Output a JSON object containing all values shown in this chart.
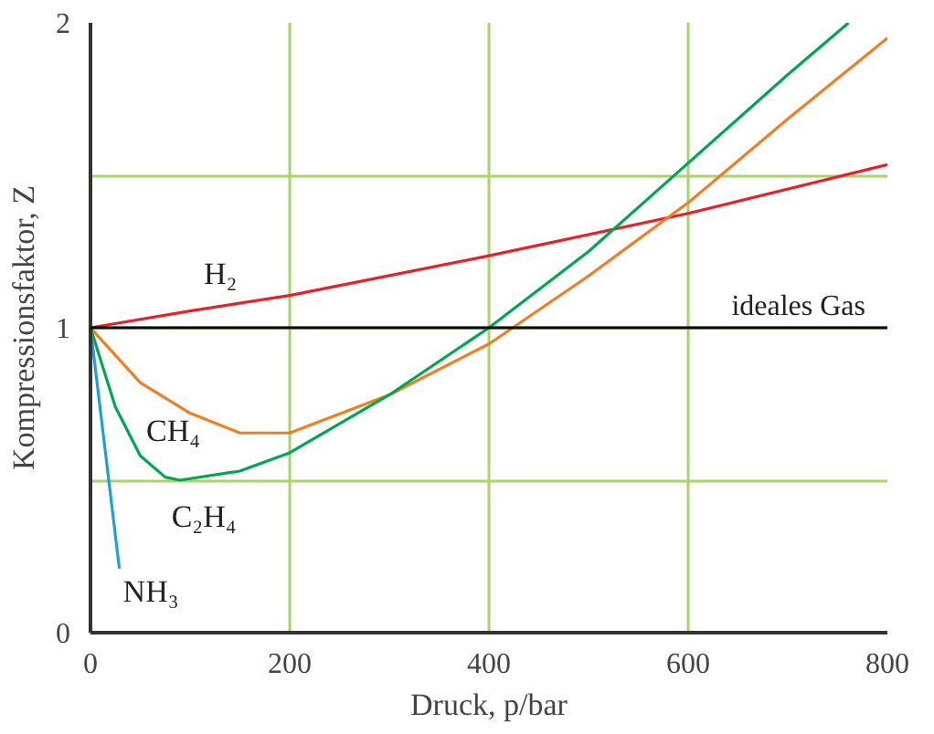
{
  "chart_data": {
    "type": "line",
    "xlabel": "Druck, p/bar",
    "ylabel": "Kompressionsfaktor, Z",
    "xlim": [
      0,
      800
    ],
    "ylim": [
      0,
      2
    ],
    "xticks": [
      0,
      200,
      400,
      600,
      800
    ],
    "yticks": [
      0,
      {
        "value": 0.5,
        "label": null
      },
      1,
      {
        "value": 1.5,
        "label": null
      },
      2
    ],
    "grid": true,
    "marker": "none",
    "line_style": "solid",
    "ref_lines": [
      {
        "axis": "y",
        "value": 1,
        "label": "ideales Gas",
        "color": "#000000"
      }
    ],
    "series": [
      {
        "name": "H₂",
        "color": "#e8202a",
        "x": [
          0,
          100,
          200,
          400,
          600,
          800
        ],
        "values": [
          1,
          1.055,
          1.106,
          1.236,
          1.375,
          1.535
        ]
      },
      {
        "name": "CH₄",
        "color": "#f07f22",
        "x": [
          0,
          50,
          100,
          150,
          200,
          300,
          400,
          424,
          500,
          600,
          700,
          800
        ],
        "values": [
          1,
          0.82,
          0.72,
          0.655,
          0.655,
          0.78,
          0.947,
          1,
          1.17,
          1.41,
          1.685,
          1.95
        ]
      },
      {
        "name": "C₂H₄",
        "color": "#00a651",
        "x": [
          0,
          25,
          50,
          75,
          90,
          150,
          200,
          300,
          400,
          500,
          600,
          700,
          761
        ],
        "values": [
          1,
          0.74,
          0.58,
          0.51,
          0.5,
          0.53,
          0.59,
          0.78,
          1,
          1.25,
          1.54,
          1.83,
          2
        ]
      },
      {
        "name": "NH₃",
        "color": "#1e9fd8",
        "x": [
          0,
          29
        ],
        "values": [
          1,
          0.21
        ]
      }
    ]
  }
}
